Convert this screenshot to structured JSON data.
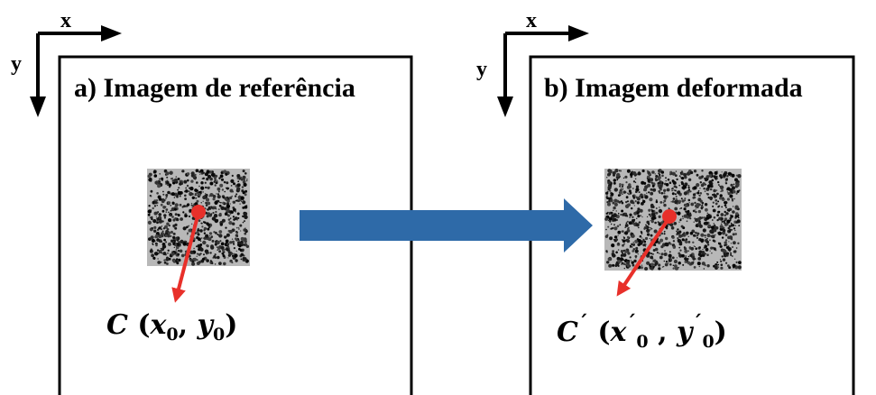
{
  "panels": [
    {
      "axis_x": "x",
      "axis_y": "y",
      "title": "a) Imagem de referência",
      "point_label": [
        "C",
        " (",
        "x",
        "0",
        ", ",
        "y",
        "0",
        ")"
      ]
    },
    {
      "axis_x": "x",
      "axis_y": "y",
      "title": "b) Imagem deformada",
      "point_label": [
        "C",
        "´",
        " (",
        "x",
        "´",
        "0",
        " , ",
        "y",
        "´",
        "0",
        ")"
      ]
    }
  ]
}
